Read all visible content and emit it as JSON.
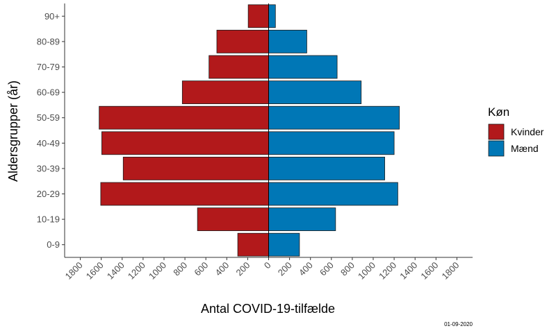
{
  "chart_data": {
    "type": "bar",
    "orientation": "horizontal-diverging",
    "categories": [
      "0-9",
      "10-19",
      "20-29",
      "30-39",
      "40-49",
      "50-59",
      "60-69",
      "70-79",
      "80-89",
      "90+"
    ],
    "series": [
      {
        "name": "Kvinder",
        "color": "#B2191B",
        "values": [
          295,
          680,
          1605,
          1390,
          1595,
          1620,
          825,
          570,
          495,
          195
        ]
      },
      {
        "name": "Mænd",
        "color": "#0077B6",
        "values": [
          295,
          640,
          1235,
          1110,
          1200,
          1250,
          885,
          655,
          365,
          65
        ]
      }
    ],
    "xlabel": "Antal COVID-19-tilfælde",
    "ylabel": "Aldersgrupper (år)",
    "xlim": [
      -1950,
      1950
    ],
    "x_ticks": [
      -1800,
      -1600,
      -1400,
      -1200,
      -1000,
      -800,
      -600,
      -400,
      -200,
      0,
      200,
      400,
      600,
      800,
      1000,
      1200,
      1400,
      1600,
      1800
    ],
    "x_tick_labels": [
      "1800",
      "1600",
      "1400",
      "1200",
      "1000",
      "800",
      "600",
      "400",
      "200",
      "0",
      "200",
      "400",
      "600",
      "800",
      "1000",
      "1200",
      "1400",
      "1600",
      "1800"
    ],
    "legend": {
      "title": "Køn",
      "position": "right"
    },
    "grid": false,
    "date": "01-09-2020"
  }
}
